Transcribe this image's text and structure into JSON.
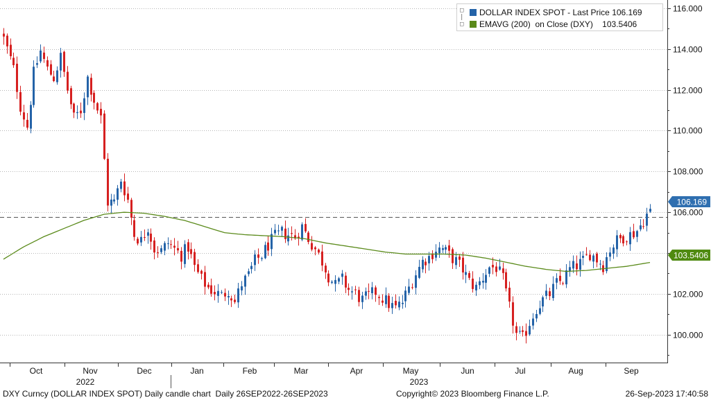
{
  "legend": {
    "series1_label": "DOLLAR INDEX SPOT - Last Price",
    "series1_value": "106.169",
    "series2_label": "EMAVG (200)  on Close (DXY)",
    "series2_value": "103.5406"
  },
  "footer": {
    "left": "DXY Curncy (DOLLAR INDEX SPOT) Daily candle chart  Daily 26SEP2022-26SEP2023",
    "center": "Copyright© 2023 Bloomberg Finance L.P.",
    "right": "26-Sep-2023 17:40:58"
  },
  "colors": {
    "up": "#2463a8",
    "down": "#d62020",
    "ema": "#5a8a1a",
    "last_badge": "#2f6fb0",
    "ema_badge": "#4f8a10"
  },
  "chart_data": {
    "type": "candlestick",
    "ylim": [
      98.6,
      116.4
    ],
    "y_ticks": [
      "100.000",
      "102.000",
      "104.000",
      "106.000",
      "108.000",
      "110.000",
      "112.000",
      "114.000",
      "116.000"
    ],
    "x_months": [
      "Oct",
      "Nov",
      "Dec",
      "Jan",
      "Feb",
      "Mar",
      "Apr",
      "May",
      "Jun",
      "Jul",
      "Aug",
      "Sep"
    ],
    "x_years": [
      "2022",
      "2023"
    ],
    "last_price": 106.169,
    "last_price_label": "106.169",
    "ema_last": 103.5406,
    "ema_last_label": "103.5406",
    "reference_level": 105.35,
    "close_waypoints": [
      [
        0,
        114.5
      ],
      [
        3,
        113.0
      ],
      [
        5,
        111.2
      ],
      [
        7,
        110.2
      ],
      [
        9,
        112.8
      ],
      [
        11,
        113.9
      ],
      [
        13,
        113.0
      ],
      [
        15,
        112.6
      ],
      [
        17,
        113.6
      ],
      [
        19,
        112.0
      ],
      [
        21,
        110.6
      ],
      [
        23,
        111.0
      ],
      [
        25,
        112.6
      ],
      [
        27,
        111.5
      ],
      [
        29,
        110.6
      ],
      [
        31,
        106.5
      ],
      [
        33,
        106.5
      ],
      [
        35,
        107.6
      ],
      [
        37,
        106.6
      ],
      [
        39,
        104.9
      ],
      [
        41,
        104.6
      ],
      [
        43,
        105.3
      ],
      [
        45,
        104.2
      ],
      [
        47,
        104.1
      ],
      [
        49,
        104.5
      ],
      [
        51,
        104.2
      ],
      [
        53,
        103.9
      ],
      [
        55,
        104.3
      ],
      [
        57,
        103.3
      ],
      [
        59,
        102.7
      ],
      [
        61,
        102.3
      ],
      [
        63,
        102.1
      ],
      [
        65,
        101.9
      ],
      [
        67,
        102.2
      ],
      [
        69,
        101.6
      ],
      [
        71,
        102.5
      ],
      [
        73,
        102.9
      ],
      [
        75,
        103.6
      ],
      [
        77,
        103.9
      ],
      [
        79,
        104.4
      ],
      [
        81,
        104.8
      ],
      [
        83,
        105.0
      ],
      [
        85,
        104.9
      ],
      [
        87,
        104.8
      ],
      [
        89,
        105.3
      ],
      [
        91,
        104.7
      ],
      [
        93,
        104.2
      ],
      [
        95,
        103.6
      ],
      [
        97,
        102.9
      ],
      [
        99,
        102.4
      ],
      [
        101,
        102.7
      ],
      [
        103,
        102.2
      ],
      [
        105,
        102.0
      ],
      [
        107,
        101.7
      ],
      [
        109,
        101.9
      ],
      [
        111,
        102.1
      ],
      [
        113,
        101.8
      ],
      [
        115,
        101.5
      ],
      [
        117,
        101.3
      ],
      [
        119,
        101.6
      ],
      [
        121,
        102.3
      ],
      [
        123,
        103.0
      ],
      [
        125,
        103.6
      ],
      [
        127,
        103.8
      ],
      [
        129,
        104.2
      ],
      [
        131,
        104.2
      ],
      [
        133,
        103.9
      ],
      [
        135,
        103.6
      ],
      [
        137,
        103.2
      ],
      [
        139,
        102.6
      ],
      [
        141,
        102.3
      ],
      [
        143,
        102.8
      ],
      [
        145,
        103.3
      ],
      [
        147,
        103.3
      ],
      [
        149,
        102.7
      ],
      [
        151,
        101.3
      ],
      [
        153,
        100.0
      ],
      [
        155,
        99.8
      ],
      [
        157,
        100.6
      ],
      [
        159,
        101.3
      ],
      [
        161,
        101.7
      ],
      [
        163,
        102.0
      ],
      [
        165,
        102.5
      ],
      [
        167,
        102.7
      ],
      [
        169,
        103.2
      ],
      [
        171,
        103.4
      ],
      [
        173,
        103.6
      ],
      [
        175,
        104.0
      ],
      [
        177,
        103.7
      ],
      [
        179,
        103.4
      ],
      [
        181,
        104.2
      ],
      [
        183,
        104.6
      ],
      [
        185,
        104.8
      ],
      [
        187,
        104.9
      ],
      [
        189,
        105.1
      ],
      [
        191,
        105.6
      ],
      [
        193,
        106.169
      ]
    ],
    "ema_waypoints": [
      [
        0,
        103.7
      ],
      [
        6,
        104.3
      ],
      [
        12,
        104.8
      ],
      [
        18,
        105.2
      ],
      [
        24,
        105.6
      ],
      [
        30,
        105.9
      ],
      [
        36,
        106.0
      ],
      [
        42,
        105.95
      ],
      [
        48,
        105.8
      ],
      [
        54,
        105.6
      ],
      [
        60,
        105.3
      ],
      [
        66,
        105.0
      ],
      [
        72,
        104.9
      ],
      [
        78,
        104.85
      ],
      [
        84,
        104.8
      ],
      [
        90,
        104.7
      ],
      [
        96,
        104.5
      ],
      [
        102,
        104.35
      ],
      [
        108,
        104.2
      ],
      [
        114,
        104.05
      ],
      [
        120,
        103.95
      ],
      [
        126,
        103.95
      ],
      [
        132,
        103.95
      ],
      [
        138,
        103.9
      ],
      [
        144,
        103.75
      ],
      [
        150,
        103.55
      ],
      [
        156,
        103.35
      ],
      [
        162,
        103.2
      ],
      [
        168,
        103.1
      ],
      [
        174,
        103.15
      ],
      [
        180,
        103.25
      ],
      [
        186,
        103.35
      ],
      [
        193,
        103.54
      ]
    ]
  }
}
